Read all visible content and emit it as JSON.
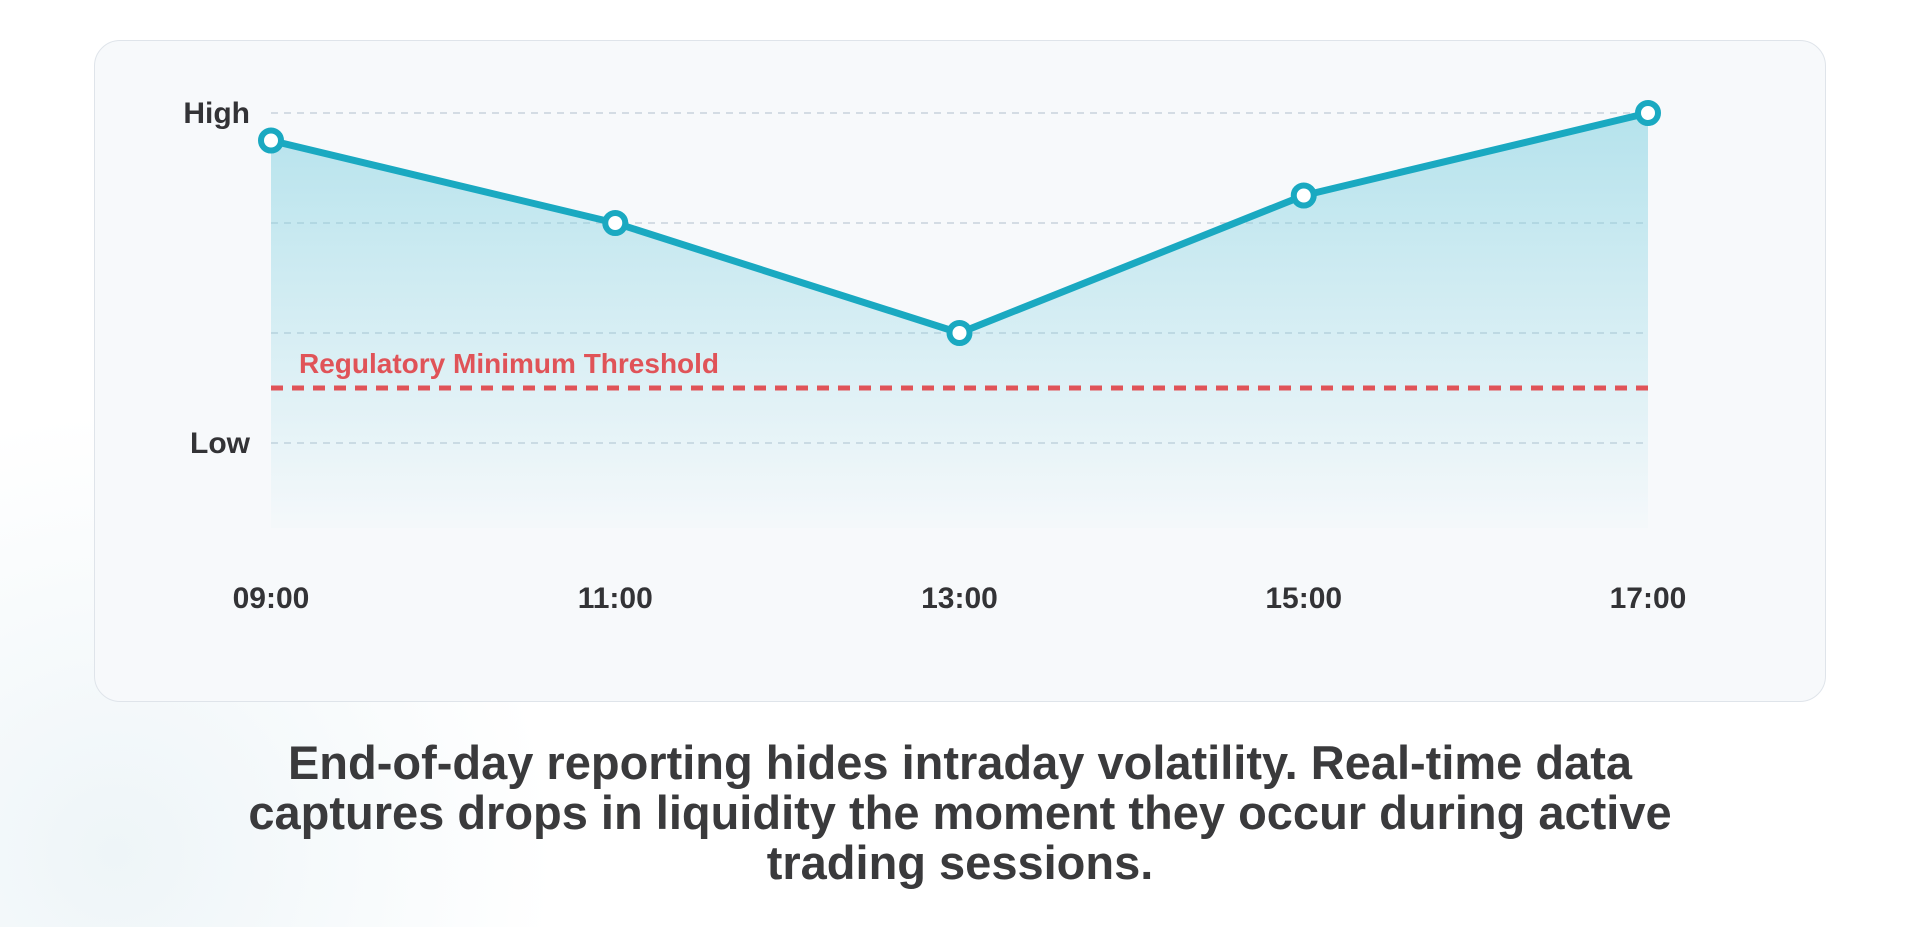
{
  "chart_data": {
    "type": "line",
    "categories": [
      "09:00",
      "11:00",
      "13:00",
      "15:00",
      "17:00"
    ],
    "values": [
      3.75,
      3.0,
      2.0,
      3.25,
      4.0
    ],
    "ylim": [
      0,
      4
    ],
    "y_tick_labels": [
      {
        "value": 4,
        "label": "High"
      },
      {
        "value": 1,
        "label": "Low"
      }
    ],
    "gridlines_at": [
      4,
      3,
      2,
      1
    ],
    "grid": true,
    "threshold": {
      "value": 1.5,
      "label": "Regulatory Minimum Threshold",
      "color": "#e05358"
    },
    "line_color": "#1aa9c1",
    "fill_color": "#7fd0e0"
  },
  "caption": "End-of-day reporting hides intraday volatility. Real-time data captures drops in liquidity the moment they occur during active trading sessions."
}
